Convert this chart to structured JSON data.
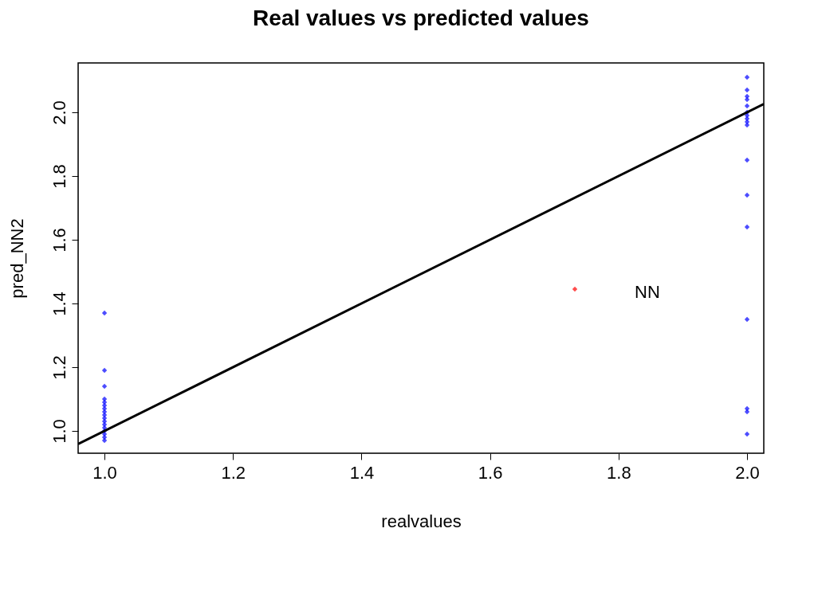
{
  "chart_data": {
    "type": "scatter",
    "title": "Real values   vs  predicted values",
    "xlabel": "realvalues",
    "ylabel": "pred_NN2",
    "xlim": [
      0.959,
      2.026
    ],
    "ylim": [
      0.93,
      2.155
    ],
    "xticks": [
      {
        "value": 1.0,
        "label": "1.0"
      },
      1.2,
      1.4,
      1.6,
      1.8,
      {
        "value": 2.0,
        "label": "2.0"
      }
    ],
    "yticks": [
      {
        "value": 1.0,
        "label": "1.0"
      },
      1.2,
      1.4,
      1.6,
      1.8,
      {
        "value": 2.0,
        "label": "2.0"
      }
    ],
    "grid": false,
    "series": [
      {
        "color": "#0000ff",
        "marker": "diamond",
        "x": [
          1,
          1,
          1,
          1,
          1,
          1,
          1,
          1,
          1,
          1,
          1,
          1,
          1,
          1,
          1,
          1,
          1,
          2,
          2,
          2,
          2,
          2,
          2,
          2,
          2,
          2,
          2,
          2,
          2,
          2,
          2,
          2,
          2,
          2
        ],
        "values": [
          1.37,
          1.19,
          1.14,
          1.1,
          1.09,
          1.08,
          1.07,
          1.06,
          1.05,
          1.04,
          1.03,
          1.02,
          1.01,
          1.0,
          0.99,
          0.98,
          0.97,
          2.11,
          2.07,
          2.05,
          2.04,
          2.02,
          2.0,
          1.99,
          1.98,
          1.97,
          1.96,
          1.85,
          1.74,
          1.64,
          1.35,
          1.07,
          1.06,
          0.99
        ]
      },
      {
        "type": "line",
        "color": "#000000",
        "line_style": "solid",
        "marker": "none",
        "x": [
          0.959,
          2.026
        ],
        "values": [
          0.959,
          2.026
        ]
      },
      {
        "color": "#ff0000",
        "marker": "diamond",
        "x": [
          1.732
        ],
        "values": [
          1.445
        ]
      }
    ],
    "annotations": [
      "NN"
    ]
  }
}
